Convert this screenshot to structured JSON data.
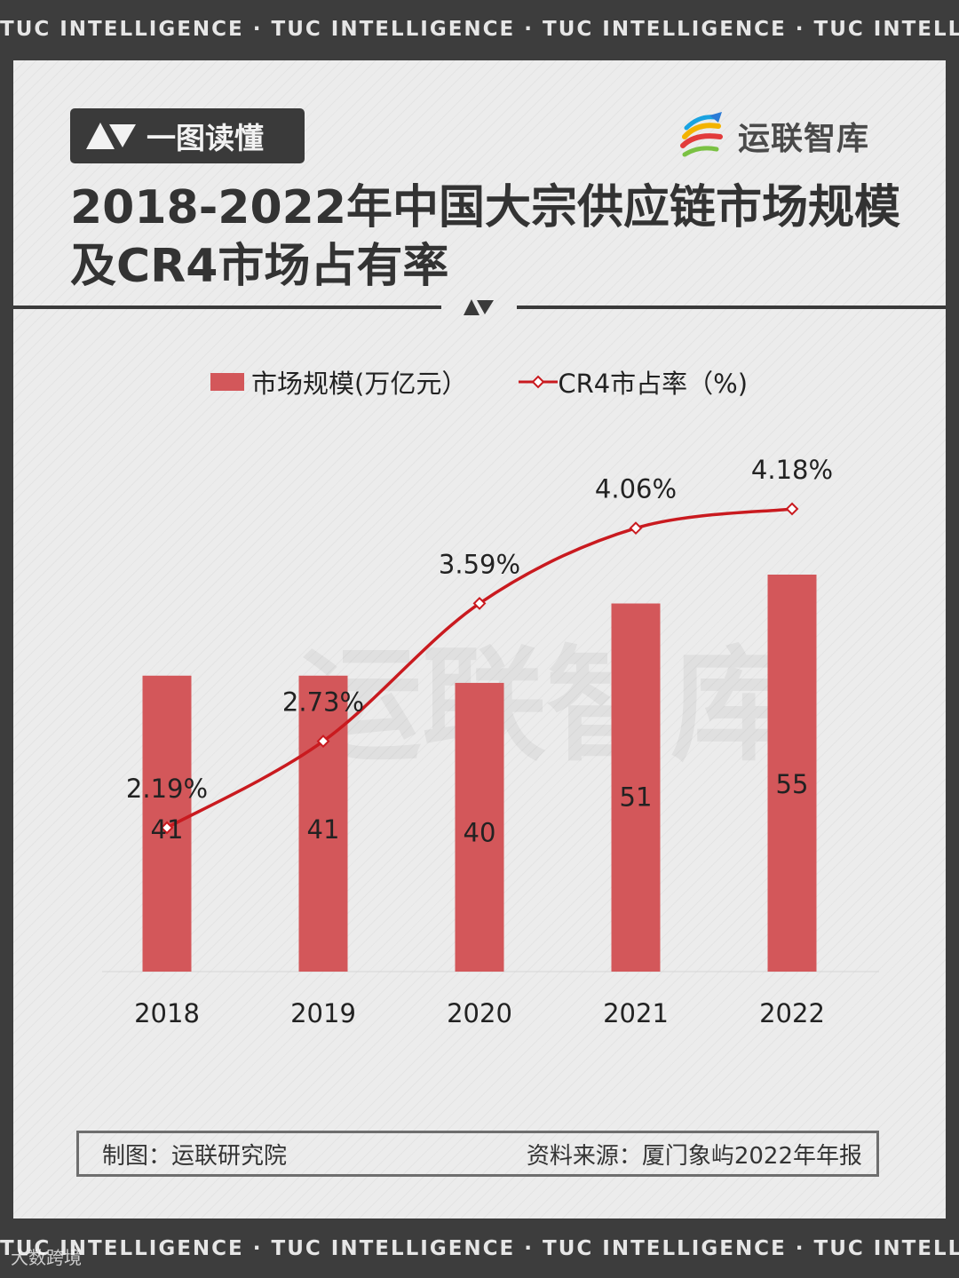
{
  "header_band": "TUC INTELLIGENCE · TUC INTELLIGENCE · TUC INTELLIGENCE · TUC INTELLIGENCE",
  "footer_band": "TUC INTELLIGENCE · TUC INTELLIGENCE · TUC INTELLIGENCE · TUC INTELLIGENCE",
  "badge_label": "一图读懂",
  "brand_name": "运联智库",
  "title_line1": "2018-2022年中国大宗供应链市场规模",
  "title_line2": "及CR4市场占有率",
  "watermark_text": "运联智库",
  "colors": {
    "bar": "#d3575a",
    "line": "#c91a1f",
    "dark": "#3a3a3a",
    "band": "#3d3d3d"
  },
  "chart_data": {
    "type": "bar",
    "categories": [
      "2018",
      "2019",
      "2020",
      "2021",
      "2022"
    ],
    "series": [
      {
        "name": "市场规模(万亿元）",
        "type": "bar",
        "values": [
          41,
          41,
          40,
          51,
          55
        ],
        "labels": [
          "41",
          "41",
          "40",
          "51",
          "55"
        ]
      },
      {
        "name": "CR4市占率（%)",
        "type": "line",
        "values": [
          2.19,
          2.73,
          3.59,
          4.06,
          4.18
        ],
        "labels": [
          "2.19%",
          "2.73%",
          "3.59%",
          "4.06%",
          "4.18%"
        ]
      }
    ],
    "bar_axis_range": [
      0,
      60
    ],
    "line_axis_range": [
      0,
      5
    ],
    "legend": "top",
    "grid": false
  },
  "footer": {
    "left": "制图：运联研究院",
    "right": "资料来源：厦门象屿2022年年报"
  },
  "corner_watermark": "大数跨境"
}
